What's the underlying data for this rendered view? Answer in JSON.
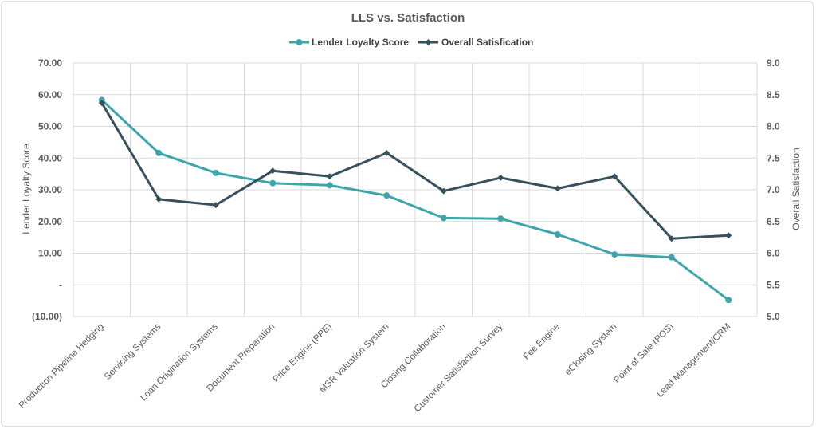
{
  "chart_data": {
    "type": "line",
    "title": "LLS vs. Satisfaction",
    "categories": [
      "Production Pipeline Hedging",
      "Servicing Systems",
      "Loan Origination Systems",
      "Document Preparation",
      "Price Engine (PPE)",
      "MSR Valuation System",
      "Closing Collaboration",
      "Customer Satisfaction Survey",
      "Fee Engine",
      "eClosing System",
      "Point of Sale (POS)",
      "Lead Management/CRM"
    ],
    "series": [
      {
        "name": "Lender Loyalty Score",
        "axis": "left",
        "color": "#3fa5a8",
        "marker": "circle",
        "values": [
          58.3,
          41.6,
          35.3,
          32.1,
          31.4,
          28.2,
          21.1,
          20.9,
          15.9,
          9.6,
          8.7,
          -4.8
        ]
      },
      {
        "name": "Overall Satisfication",
        "axis": "right",
        "color": "#37505c",
        "marker": "diamond",
        "values": [
          8.37,
          6.85,
          6.76,
          7.3,
          7.21,
          7.58,
          6.98,
          7.19,
          7.02,
          7.21,
          6.23,
          6.28
        ]
      }
    ],
    "ylabel": "Lender Loyalty Score",
    "ylim": [
      -10,
      70
    ],
    "yticks": [
      "70.00",
      "60.00",
      "50.00",
      "40.00",
      "30.00",
      "20.00",
      "10.00",
      "-",
      "(10.00)"
    ],
    "y2label": "Overall Satisfaction",
    "y2lim": [
      5.0,
      9.0
    ],
    "y2ticks": [
      "9.0",
      "8.5",
      "8.0",
      "7.5",
      "7.0",
      "6.5",
      "6.0",
      "5.5",
      "5.0"
    ],
    "legend_position": "top-center",
    "grid": true
  }
}
